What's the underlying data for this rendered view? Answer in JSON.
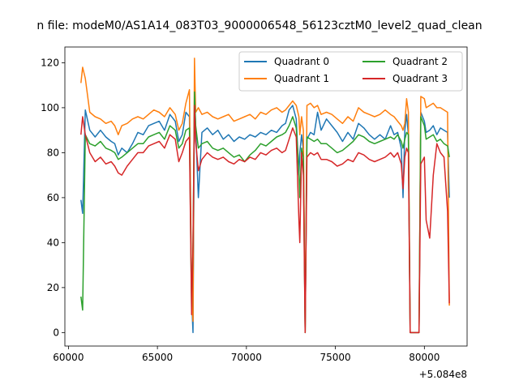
{
  "chart_data": {
    "type": "line",
    "title": "n file: modeM0/AS1A14_083T03_9000006548_56123cztM0_level2_quad_clean",
    "xlabel": "",
    "ylabel": "",
    "x_offset_label": "+5.084e8",
    "xlim": [
      59800,
      82400
    ],
    "ylim": [
      -6,
      127
    ],
    "xticks": [
      60000,
      65000,
      70000,
      75000,
      80000
    ],
    "xtick_labels": [
      "60000",
      "65000",
      "70000",
      "75000",
      "80000"
    ],
    "yticks": [
      0,
      20,
      40,
      60,
      80,
      100,
      120
    ],
    "ytick_labels": [
      "0",
      "20",
      "40",
      "60",
      "80",
      "100",
      "120"
    ],
    "legend_position": "upper-right",
    "series": [
      {
        "name": "Quadrant 0",
        "color": "#1f77b4",
        "x": [
          60700,
          60800,
          60950,
          61200,
          61500,
          61800,
          62100,
          62400,
          62600,
          62800,
          63000,
          63300,
          63600,
          63900,
          64200,
          64500,
          64800,
          65100,
          65400,
          65700,
          66000,
          66200,
          66400,
          66600,
          66800,
          66920,
          67000,
          67080,
          67150,
          67300,
          67500,
          67800,
          68100,
          68400,
          68700,
          69000,
          69300,
          69600,
          69900,
          70200,
          70500,
          70800,
          71100,
          71400,
          71700,
          72000,
          72200,
          72400,
          72600,
          72800,
          72950,
          73000,
          73100,
          73200,
          73300,
          73400,
          73600,
          73800,
          74000,
          74200,
          74500,
          74800,
          75100,
          75400,
          75700,
          76000,
          76300,
          76600,
          76900,
          77200,
          77500,
          77800,
          78100,
          78300,
          78500,
          78700,
          78800,
          78900,
          79000,
          79100,
          79200,
          79300,
          79500,
          79700,
          79800,
          80000,
          80100,
          80300,
          80500,
          80700,
          80900,
          81100,
          81300,
          81400
        ],
        "y": [
          59,
          53,
          99,
          90,
          87,
          90,
          87,
          85,
          84,
          79,
          82,
          80,
          84,
          89,
          88,
          92,
          93,
          94,
          90,
          97,
          94,
          85,
          88,
          98,
          96,
          15,
          0,
          106,
          91,
          60,
          89,
          91,
          88,
          90,
          86,
          88,
          85,
          87,
          86,
          88,
          87,
          89,
          88,
          90,
          89,
          92,
          93,
          99,
          101,
          95,
          70,
          80,
          88,
          81,
          0,
          86,
          89,
          88,
          98,
          90,
          95,
          92,
          89,
          85,
          89,
          86,
          93,
          91,
          88,
          86,
          88,
          86,
          92,
          88,
          89,
          82,
          60,
          90,
          97,
          88,
          0,
          0,
          0,
          0,
          98,
          94,
          89,
          90,
          92,
          88,
          91,
          90,
          89,
          60
        ],
        "width": 1.5
      },
      {
        "name": "Quadrant 1",
        "color": "#ff7f0e",
        "x": [
          60700,
          60800,
          60950,
          61200,
          61500,
          61800,
          62100,
          62400,
          62600,
          62800,
          63000,
          63300,
          63600,
          63900,
          64200,
          64500,
          64800,
          65100,
          65400,
          65700,
          66000,
          66200,
          66400,
          66600,
          66800,
          66920,
          67000,
          67080,
          67150,
          67300,
          67500,
          67800,
          68100,
          68400,
          68700,
          69000,
          69300,
          69600,
          69900,
          70200,
          70500,
          70800,
          71100,
          71400,
          71700,
          72000,
          72200,
          72400,
          72600,
          72800,
          72950,
          73000,
          73100,
          73200,
          73300,
          73400,
          73600,
          73800,
          74000,
          74200,
          74500,
          74800,
          75100,
          75400,
          75700,
          76000,
          76300,
          76600,
          76900,
          77200,
          77500,
          77800,
          78100,
          78300,
          78500,
          78700,
          78800,
          78900,
          79000,
          79100,
          79200,
          79300,
          79500,
          79700,
          79800,
          80000,
          80100,
          80300,
          80500,
          80700,
          80900,
          81100,
          81300,
          81400
        ],
        "y": [
          111,
          118,
          113,
          98,
          96,
          95,
          93,
          94,
          92,
          88,
          92,
          93,
          95,
          96,
          95,
          97,
          99,
          98,
          96,
          100,
          97,
          90,
          93,
          102,
          108,
          15,
          5,
          122,
          98,
          100,
          97,
          98,
          96,
          95,
          96,
          97,
          94,
          95,
          96,
          97,
          95,
          98,
          97,
          99,
          100,
          98,
          99,
          101,
          103,
          101,
          96,
          88,
          96,
          90,
          0,
          101,
          102,
          100,
          101,
          97,
          98,
          97,
          95,
          93,
          96,
          94,
          100,
          98,
          97,
          96,
          97,
          99,
          97,
          96,
          94,
          92,
          90,
          93,
          104,
          98,
          0,
          0,
          0,
          0,
          105,
          104,
          100,
          101,
          102,
          100,
          100,
          99,
          98,
          12
        ],
        "width": 1.5
      },
      {
        "name": "Quadrant 2",
        "color": "#2ca02c",
        "x": [
          60700,
          60800,
          60950,
          61200,
          61500,
          61800,
          62100,
          62400,
          62600,
          62800,
          63000,
          63300,
          63600,
          63900,
          64200,
          64500,
          64800,
          65100,
          65400,
          65700,
          66000,
          66200,
          66400,
          66600,
          66800,
          66920,
          67000,
          67080,
          67150,
          67300,
          67500,
          67800,
          68100,
          68400,
          68700,
          69000,
          69300,
          69600,
          69900,
          70200,
          70500,
          70800,
          71100,
          71400,
          71700,
          72000,
          72200,
          72400,
          72600,
          72800,
          72950,
          73000,
          73100,
          73200,
          73300,
          73400,
          73600,
          73800,
          74000,
          74200,
          74500,
          74800,
          75100,
          75400,
          75700,
          76000,
          76300,
          76600,
          76900,
          77200,
          77500,
          77800,
          78100,
          78300,
          78500,
          78700,
          78800,
          78900,
          79000,
          79100,
          79200,
          79300,
          79500,
          79700,
          79800,
          80000,
          80100,
          80300,
          80500,
          80700,
          80900,
          81100,
          81300,
          81400
        ],
        "y": [
          16,
          10,
          88,
          84,
          83,
          85,
          82,
          81,
          80,
          77,
          78,
          80,
          82,
          84,
          84,
          87,
          88,
          89,
          86,
          92,
          90,
          82,
          84,
          90,
          91,
          10,
          38,
          107,
          92,
          82,
          84,
          85,
          82,
          81,
          82,
          80,
          78,
          79,
          76,
          79,
          81,
          84,
          83,
          85,
          87,
          88,
          89,
          92,
          96,
          91,
          72,
          60,
          82,
          78,
          0,
          87,
          86,
          85,
          86,
          84,
          84,
          82,
          80,
          81,
          83,
          85,
          88,
          87,
          85,
          84,
          85,
          86,
          87,
          86,
          88,
          85,
          82,
          86,
          89,
          88,
          0,
          0,
          0,
          0,
          96,
          92,
          86,
          87,
          88,
          85,
          86,
          84,
          83,
          78
        ],
        "width": 1.5
      },
      {
        "name": "Quadrant 3",
        "color": "#d62728",
        "x": [
          60700,
          60800,
          60950,
          61200,
          61500,
          61800,
          62100,
          62400,
          62600,
          62800,
          63000,
          63300,
          63600,
          63900,
          64200,
          64500,
          64800,
          65100,
          65400,
          65700,
          66000,
          66200,
          66400,
          66600,
          66800,
          66920,
          67000,
          67080,
          67150,
          67300,
          67500,
          67800,
          68100,
          68400,
          68700,
          69000,
          69300,
          69600,
          69900,
          70200,
          70500,
          70800,
          71100,
          71400,
          71700,
          72000,
          72200,
          72400,
          72600,
          72800,
          72950,
          73000,
          73100,
          73200,
          73300,
          73400,
          73600,
          73800,
          74000,
          74200,
          74500,
          74800,
          75100,
          75400,
          75700,
          76000,
          76300,
          76600,
          76900,
          77200,
          77500,
          77800,
          78100,
          78300,
          78500,
          78700,
          78800,
          78900,
          79000,
          79100,
          79200,
          79300,
          79500,
          79700,
          79800,
          80000,
          80100,
          80300,
          80500,
          80700,
          80900,
          81100,
          81300,
          81400
        ],
        "y": [
          88,
          96,
          88,
          80,
          76,
          78,
          75,
          76,
          74,
          71,
          70,
          74,
          77,
          80,
          80,
          83,
          84,
          85,
          82,
          88,
          86,
          76,
          80,
          85,
          87,
          8,
          40,
          101,
          85,
          72,
          77,
          80,
          78,
          77,
          78,
          76,
          75,
          77,
          76,
          78,
          77,
          80,
          79,
          81,
          82,
          80,
          81,
          86,
          91,
          87,
          50,
          40,
          80,
          70,
          0,
          78,
          80,
          79,
          80,
          77,
          77,
          76,
          74,
          75,
          77,
          76,
          80,
          79,
          77,
          76,
          77,
          78,
          80,
          78,
          80,
          75,
          64,
          78,
          82,
          80,
          0,
          0,
          0,
          0,
          75,
          78,
          50,
          42,
          70,
          84,
          80,
          78,
          54,
          13
        ],
        "width": 1.5
      }
    ]
  }
}
